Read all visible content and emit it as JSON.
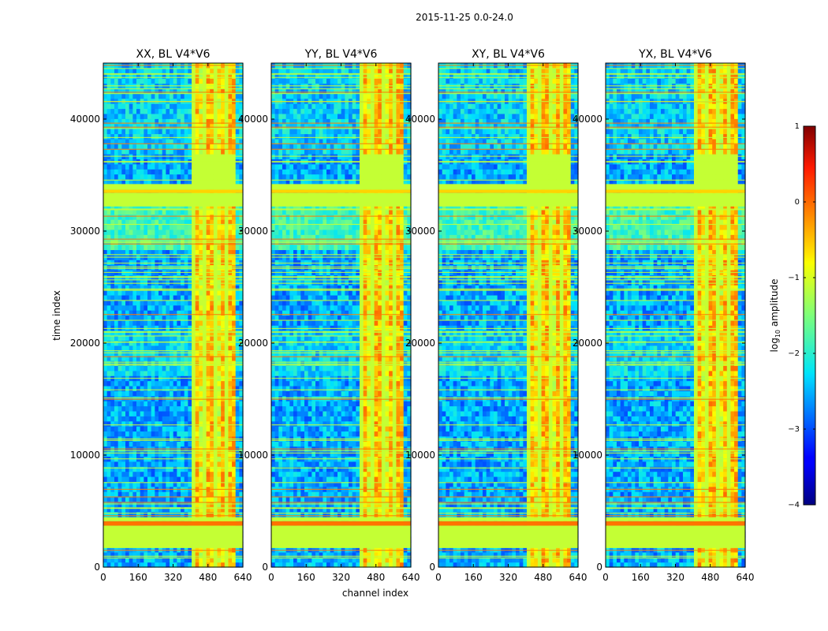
{
  "chart_data": {
    "type": "heatmap",
    "suptitle": "2015-11-25 0.0-24.0",
    "xlabel": "channel index",
    "ylabel": "time index",
    "xlim": [
      0,
      640
    ],
    "ylim": [
      0,
      45000
    ],
    "xticks": [
      0,
      160,
      320,
      480,
      640
    ],
    "xtick_labels": [
      "0",
      "160",
      "320",
      "480",
      "640"
    ],
    "yticks": [
      0,
      10000,
      20000,
      30000,
      40000
    ],
    "ytick_labels": [
      "0",
      "10000",
      "20000",
      "30000",
      "40000"
    ],
    "panels": [
      {
        "title": "XX, BL V4*V6",
        "rfi_start_channel": 405
      },
      {
        "title": "YY, BL V4*V6",
        "rfi_start_channel": 405
      },
      {
        "title": "XY, BL V4*V6",
        "rfi_start_channel": 405
      },
      {
        "title": "YX, BL V4*V6",
        "rfi_start_channel": 405
      }
    ],
    "flagged_bands": [
      {
        "from": 1700,
        "to": 3700,
        "value": -1.1
      },
      {
        "from": 3700,
        "to": 4100,
        "value": -0.05
      },
      {
        "from": 4100,
        "to": 4450,
        "value": -1.1
      },
      {
        "from": 32200,
        "to": 33400,
        "value": -1.1
      },
      {
        "from": 33400,
        "to": 33700,
        "value": -0.6
      },
      {
        "from": 33700,
        "to": 34200,
        "value": -1.1
      }
    ],
    "colorbar": {
      "label": "log",
      "label_sub": "10",
      "label_suffix": " amplitude",
      "min": -4,
      "max": 1,
      "ticks": [
        -4,
        -3,
        -2,
        -1,
        0,
        1
      ],
      "tick_labels": [
        "−4",
        "−3",
        "−2",
        "−1",
        "0",
        "1"
      ],
      "colormap": "jet"
    }
  }
}
